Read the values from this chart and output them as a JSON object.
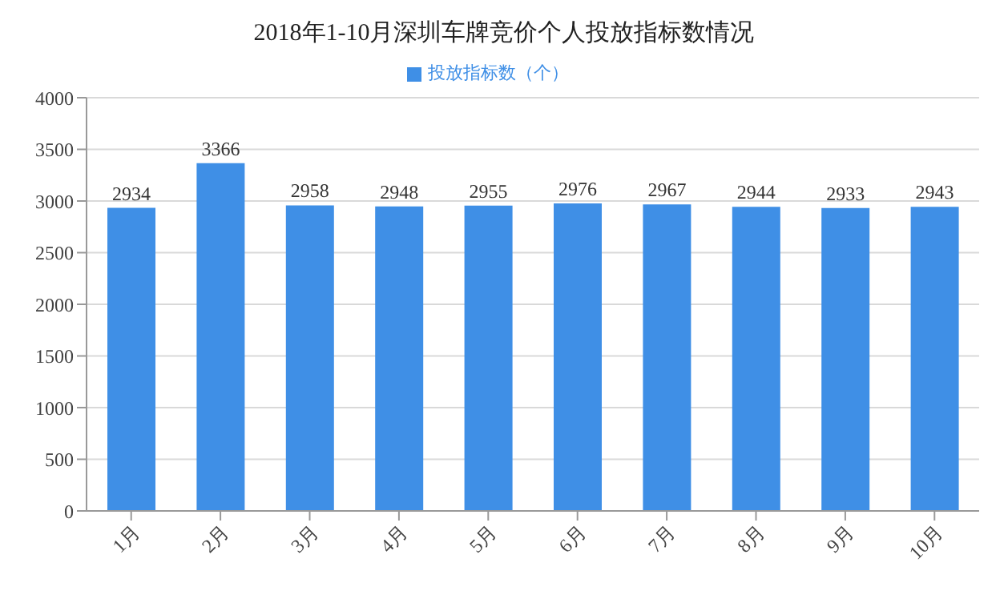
{
  "chart_data": {
    "type": "bar",
    "title": "2018年1-10月深圳车牌竞价个人投放指标数情况",
    "categories": [
      "1月",
      "2月",
      "3月",
      "4月",
      "5月",
      "6月",
      "7月",
      "8月",
      "9月",
      "10月"
    ],
    "series": [
      {
        "name": "投放指标数（个）",
        "color": "#3f8fe6",
        "values": [
          2934,
          3366,
          2958,
          2948,
          2955,
          2976,
          2967,
          2944,
          2933,
          2943
        ]
      }
    ],
    "ylim": [
      0,
      4000
    ],
    "yticks": [
      0,
      500,
      1000,
      1500,
      2000,
      2500,
      3000,
      3500,
      4000
    ],
    "grid": "y",
    "legend": "top",
    "data_labels": true
  }
}
